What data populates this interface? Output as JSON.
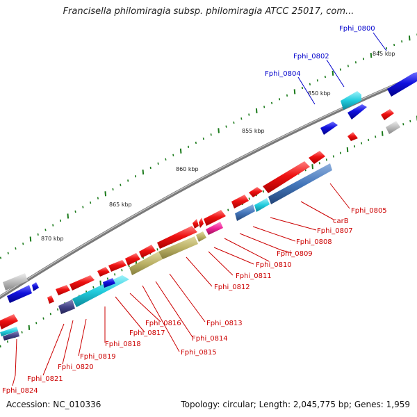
{
  "map": {
    "title": "Francisella philomiragia subsp. philomiragia ATCC 25017, com...",
    "accession": "Accession: NC_010336",
    "topology": "Topology: circular; Length: 2,045,775 bp; Genes: 1,959"
  },
  "ticks": [
    "845 kbp",
    "850 kbp",
    "855 kbp",
    "860 kbp",
    "865 kbp",
    "870 kbp"
  ],
  "gene_labels_top": [
    "Fphi_0800",
    "Fphi_0802",
    "Fphi_0804"
  ],
  "gene_labels_bottom": [
    "Fphi_0805",
    "carB",
    "Fphi_0807",
    "Fphi_0808",
    "Fphi_0809",
    "Fphi_0810",
    "Fphi_0811",
    "Fphi_0812",
    "Fphi_0813",
    "Fphi_0814",
    "Fphi_0815",
    "Fphi_0816",
    "Fphi_0817",
    "Fphi_0818",
    "Fphi_0819",
    "Fphi_0820",
    "Fphi_0821",
    "Fphi_0824"
  ],
  "colors": {
    "backbone": "#7a7a7a",
    "forward_gene": "#ee1111",
    "reverse_gene": "#1111dd",
    "cyan_feature": "#22ccdd",
    "steelblue_feature": "#4477bb",
    "olive_feature": "#bbb166",
    "magenta_feature": "#ee2299",
    "gray_feature": "#bbbbbb",
    "navy_feature": "#444488",
    "tick_green": "#1a7a1a",
    "label_red": "#cc0000",
    "label_blue": "#0000cc"
  }
}
